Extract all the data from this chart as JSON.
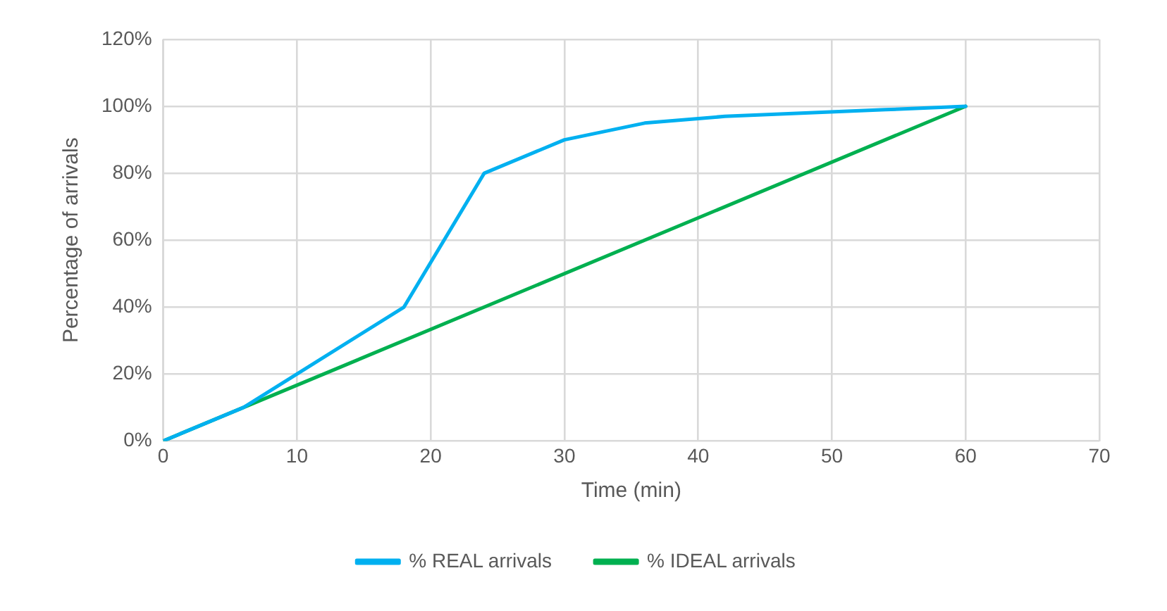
{
  "chart_data": {
    "type": "line",
    "xlabel": "Time (min)",
    "ylabel": "Percentage of arrivals",
    "xlim": [
      0,
      70
    ],
    "xticks": [
      0,
      10,
      20,
      30,
      40,
      50,
      60,
      70
    ],
    "ylim": [
      0,
      120
    ],
    "yticks": [
      {
        "value": 0,
        "label": "0%"
      },
      {
        "value": 20,
        "label": "20%"
      },
      {
        "value": 40,
        "label": "40%"
      },
      {
        "value": 60,
        "label": "60%"
      },
      {
        "value": 80,
        "label": "80%"
      },
      {
        "value": 100,
        "label": "100%"
      },
      {
        "value": 120,
        "label": "120%"
      }
    ],
    "grid": true,
    "legend": "bottom",
    "marker": "none",
    "line_style": "solid",
    "series": [
      {
        "name": "% REAL arrivals",
        "color": "#00b0f0",
        "x": [
          0,
          6,
          18,
          24,
          30,
          36,
          42,
          54,
          60
        ],
        "values": [
          0,
          10,
          40,
          80,
          90,
          95,
          97,
          99,
          100
        ]
      },
      {
        "name": "% IDEAL arrivals",
        "color": "#00b050",
        "x": [
          0,
          60
        ],
        "values": [
          0,
          100
        ]
      }
    ]
  }
}
